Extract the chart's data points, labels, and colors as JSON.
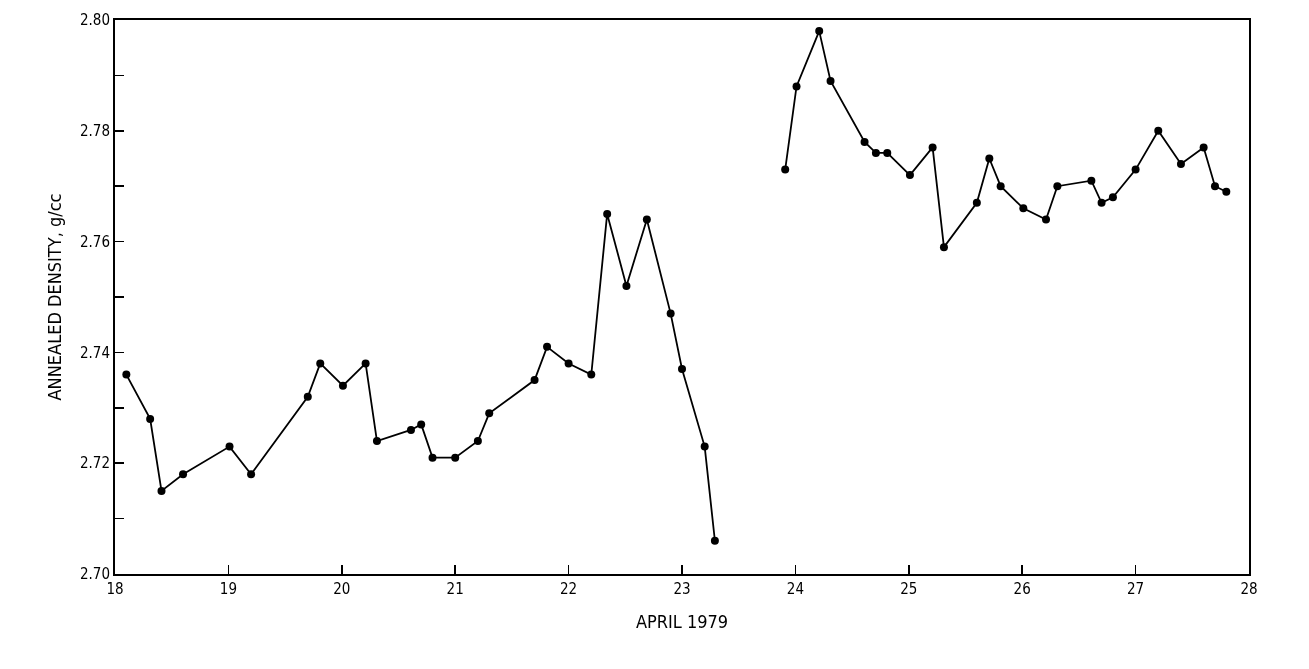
{
  "chart_data": {
    "type": "line",
    "xlabel": "APRIL 1979",
    "ylabel": "ANNEALED DENSITY, g/cc",
    "series": [
      {
        "color": "#000000",
        "x": [
          18.1,
          18.31,
          18.41,
          18.6,
          19.01,
          19.2,
          19.7,
          19.81,
          20.01,
          20.21,
          20.31,
          20.61,
          20.7,
          20.8,
          21.0,
          21.2,
          21.3,
          21.7,
          21.81,
          22.0,
          22.2,
          22.34,
          22.51,
          22.69,
          22.9,
          23.0,
          23.2,
          23.29
        ],
        "values": [
          2.736,
          2.728,
          2.715,
          2.718,
          2.723,
          2.718,
          2.732,
          2.738,
          2.734,
          2.738,
          2.724,
          2.726,
          2.727,
          2.721,
          2.721,
          2.724,
          2.729,
          2.735,
          2.741,
          2.738,
          2.736,
          2.765,
          2.752,
          2.764,
          2.747,
          2.737,
          2.723,
          2.706
        ]
      },
      {
        "color": "#000000",
        "x": [
          23.91,
          24.01,
          24.21,
          24.31,
          24.61,
          24.71,
          24.81,
          25.01,
          25.21,
          25.31,
          25.6,
          25.71,
          25.81,
          26.01,
          26.21,
          26.31,
          26.61,
          26.7,
          26.8,
          27.0,
          27.2,
          27.4,
          27.6,
          27.7,
          27.8
        ],
        "values": [
          2.773,
          2.788,
          2.798,
          2.789,
          2.778,
          2.776,
          2.776,
          2.772,
          2.777,
          2.759,
          2.767,
          2.775,
          2.77,
          2.766,
          2.764,
          2.77,
          2.771,
          2.767,
          2.768,
          2.773,
          2.78,
          2.774,
          2.777,
          2.77,
          2.769
        ]
      }
    ],
    "xlim": [
      18,
      28
    ],
    "xticks": [
      18,
      19,
      20,
      21,
      22,
      23,
      24,
      25,
      26,
      27,
      28
    ],
    "ylim": [
      2.7,
      2.8
    ],
    "yticks": [
      {
        "value": 2.7,
        "label": "2.70"
      },
      {
        "value": 2.71,
        "label": null
      },
      {
        "value": 2.72,
        "label": "2.72"
      },
      {
        "value": 2.73,
        "label": null
      },
      {
        "value": 2.74,
        "label": "2.74"
      },
      {
        "value": 2.75,
        "label": null
      },
      {
        "value": 2.76,
        "label": "2.76"
      },
      {
        "value": 2.77,
        "label": null
      },
      {
        "value": 2.78,
        "label": "2.78"
      },
      {
        "value": 2.79,
        "label": null
      },
      {
        "value": 2.8,
        "label": "2.80"
      }
    ],
    "grid": false,
    "marker": "circle",
    "line_style": "solid"
  }
}
